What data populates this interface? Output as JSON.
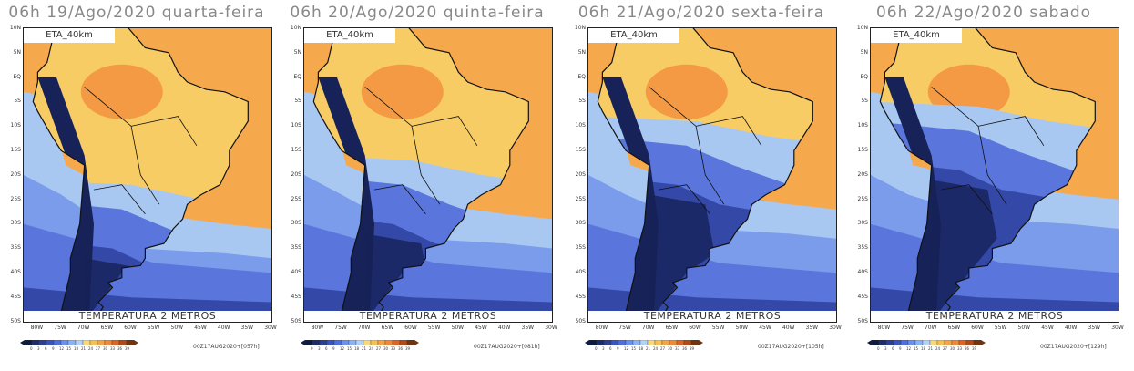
{
  "panels": [
    {
      "title": "06h 19/Ago/2020 quarta-feira",
      "run": "00Z17AUG2020+[057h]"
    },
    {
      "title": "06h 20/Ago/2020 quinta-feira",
      "run": "00Z17AUG2020+[081h]"
    },
    {
      "title": "06h 21/Ago/2020 sexta-feira",
      "run": "00Z17AUG2020+[105h]"
    },
    {
      "title": "06h 22/Ago/2020 sabado",
      "run": "00Z17AUG2020+[129h]"
    }
  ],
  "model_label": "ETA_40km",
  "variable_label": "TEMPERATURA 2 METROS",
  "lat_labels": [
    "10N",
    "5N",
    "EQ",
    "5S",
    "10S",
    "15S",
    "20S",
    "25S",
    "30S",
    "35S",
    "40S",
    "45S",
    "50S"
  ],
  "lon_labels": [
    "80W",
    "75W",
    "70W",
    "65W",
    "60W",
    "55W",
    "50W",
    "45W",
    "40W",
    "35W",
    "30W"
  ],
  "colorbar": {
    "labels": [
      "0",
      "3",
      "6",
      "9",
      "12",
      "15",
      "18",
      "21",
      "24",
      "27",
      "30",
      "33",
      "36",
      "39"
    ],
    "colors": [
      "#0c1a40",
      "#1c2c6c",
      "#2c3f94",
      "#3a55c0",
      "#4e6fe0",
      "#6a90f0",
      "#8cb2f4",
      "#b4d2f8",
      "#f8d878",
      "#f6c050",
      "#f4a444",
      "#f08838",
      "#dc6424",
      "#b04a18",
      "#703410"
    ]
  },
  "colors": {
    "warm_land": "#f8cc64",
    "hot": "#f49a44",
    "ocean_warm": "#f5a84c",
    "light_blue": "#a8c8f2",
    "mid_blue": "#7a9cea",
    "blue": "#5a76dc",
    "dark_blue": "#3448a8",
    "navy": "#162258"
  }
}
